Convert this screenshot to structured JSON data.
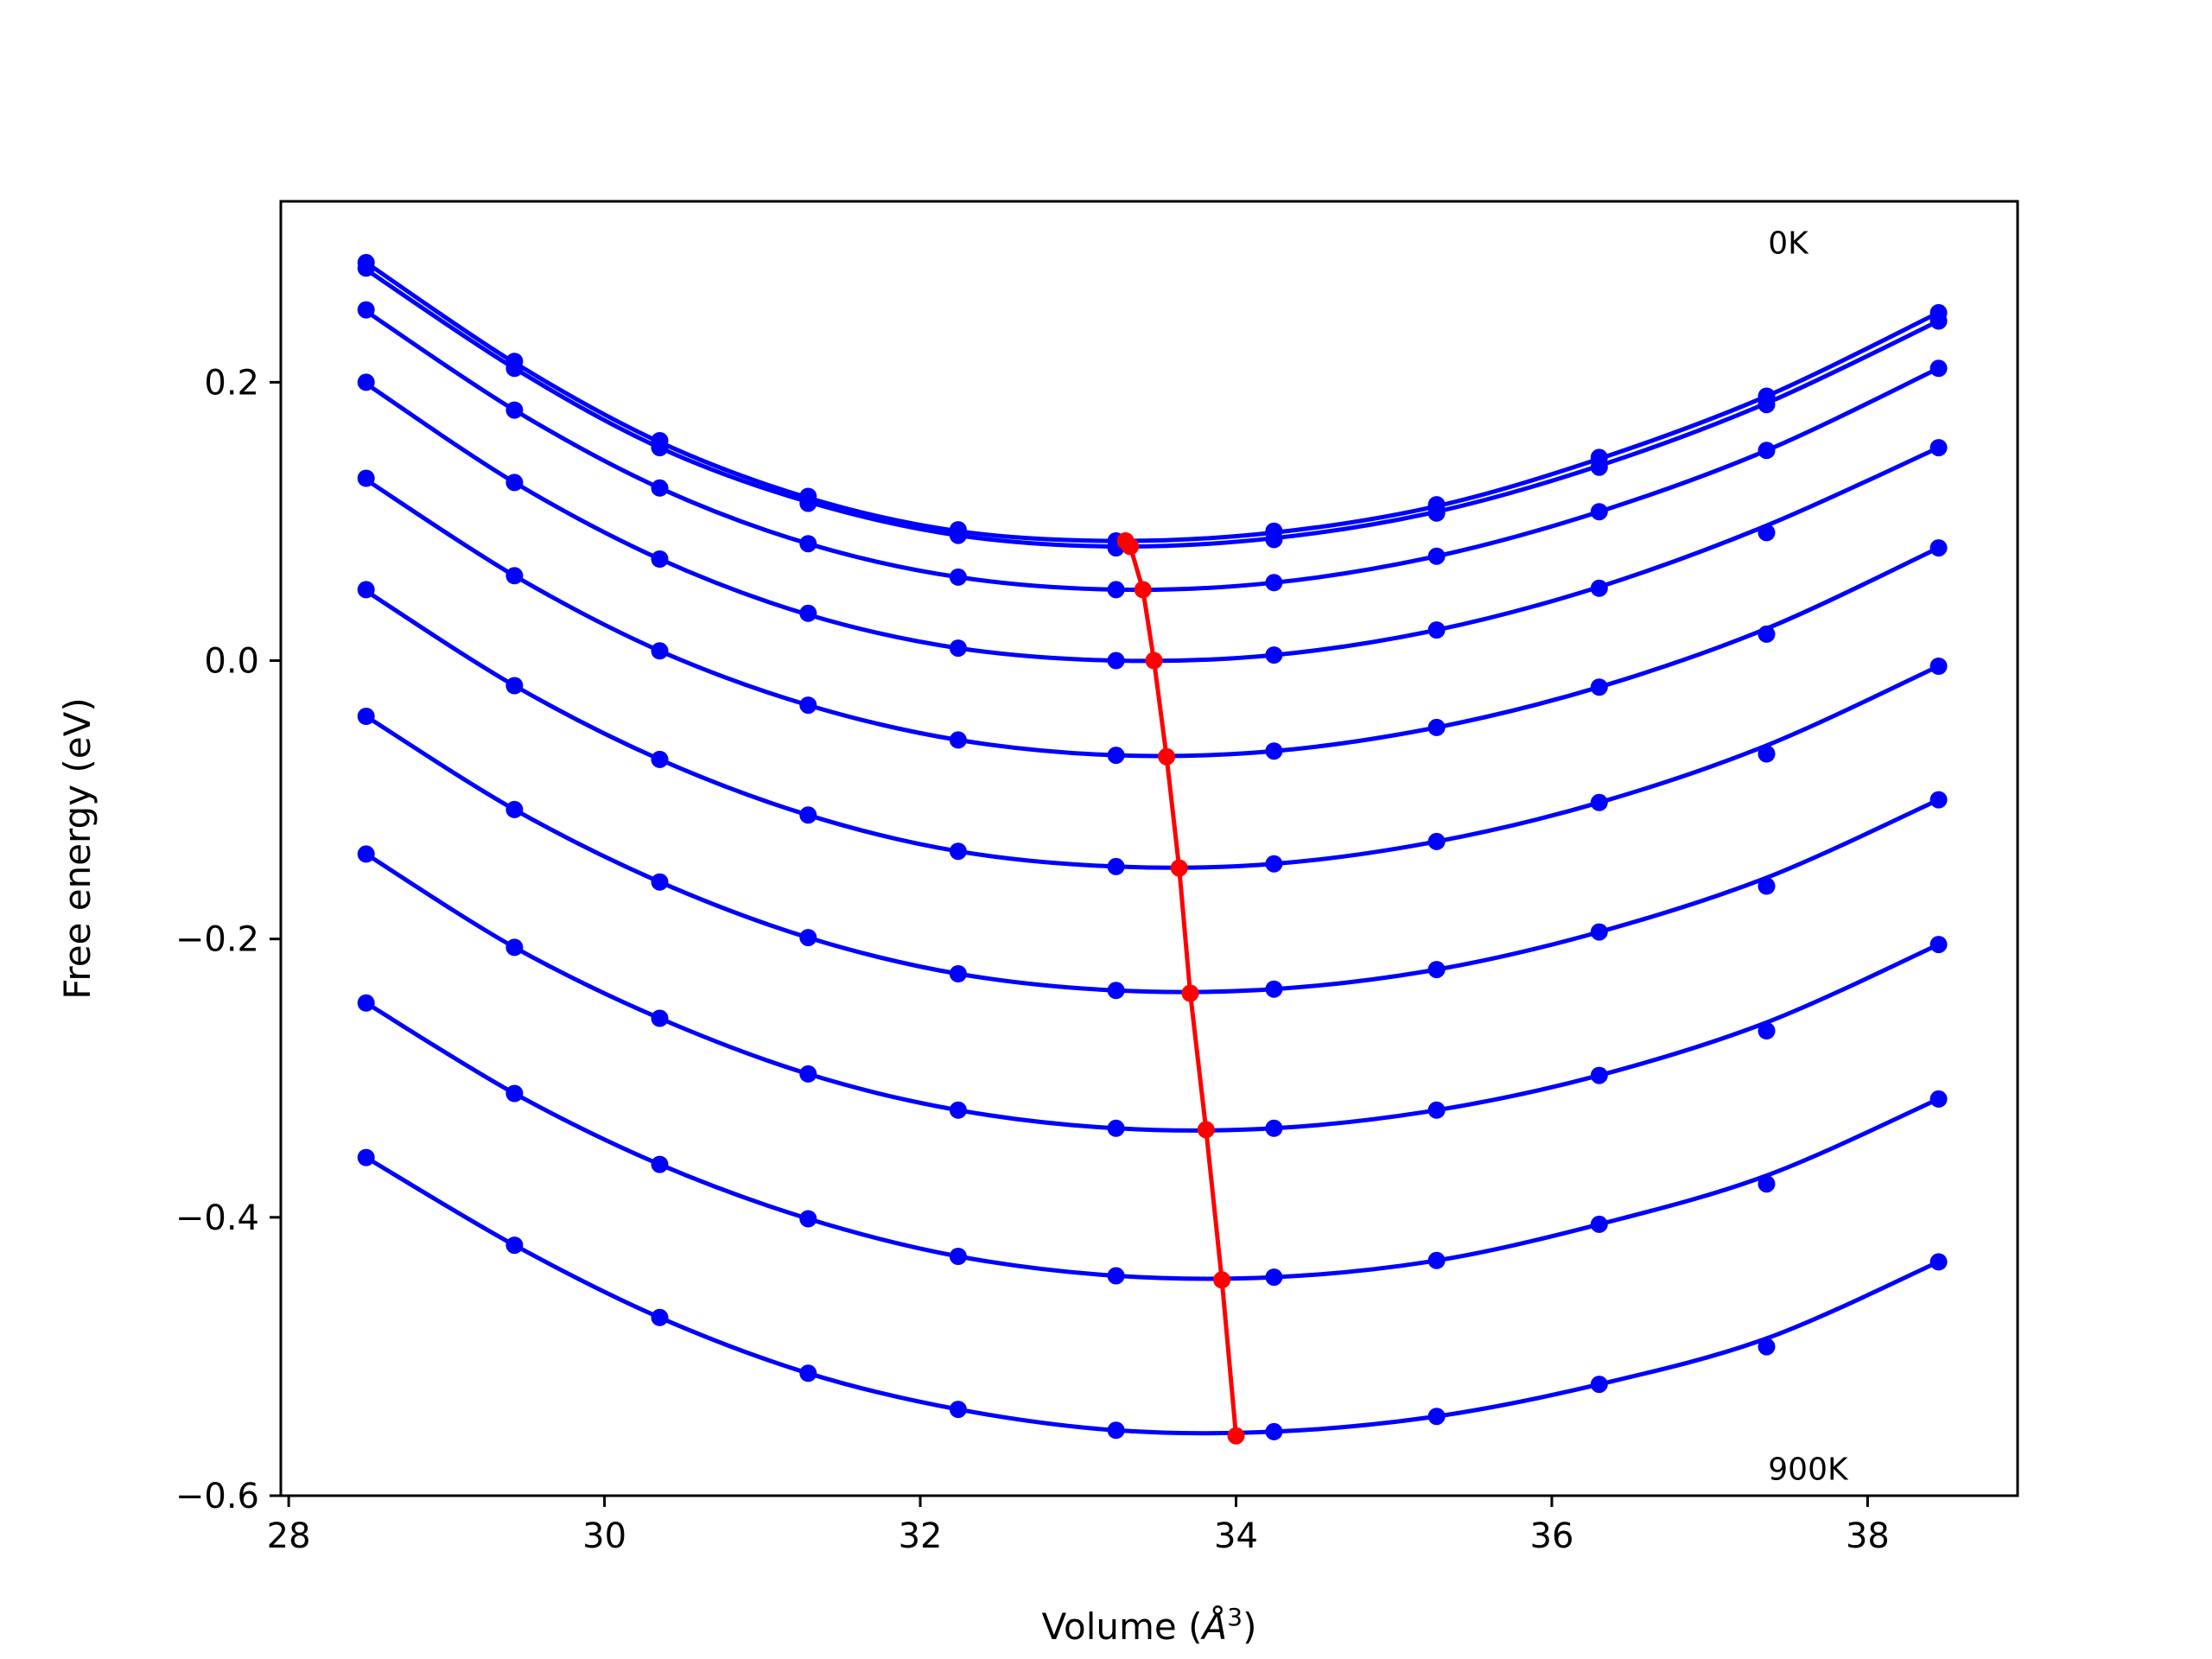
{
  "chart_data": {
    "type": "line",
    "title": "",
    "xlabel": "Volume",
    "xlabel_unit_base": "Å",
    "xlabel_unit_exp": "3",
    "ylabel": "Free energy (eV)",
    "xlim": [
      27.95,
      38.95
    ],
    "ylim": [
      -0.6,
      0.33
    ],
    "xticks": [
      28,
      30,
      32,
      34,
      36,
      38
    ],
    "xtick_labels": [
      "28",
      "30",
      "32",
      "34",
      "36",
      "38"
    ],
    "yticks": [
      -0.6,
      -0.4,
      -0.2,
      0.0,
      0.2
    ],
    "ytick_labels": [
      "−0.6",
      "−0.4",
      "−0.2",
      "0.0",
      "0.2"
    ],
    "grid": false,
    "legend": "none",
    "x": [
      28.49,
      29.43,
      30.35,
      31.29,
      32.24,
      33.24,
      34.24,
      35.27,
      36.3,
      37.36,
      38.45
    ],
    "series": [
      {
        "points": [
          0.286,
          0.215,
          0.158,
          0.118,
          0.094,
          0.086,
          0.093,
          0.112,
          0.146,
          0.19,
          0.25
        ],
        "fit": [
          0.286,
          0.214,
          0.157,
          0.117,
          0.093,
          0.086,
          0.092,
          0.111,
          0.145,
          0.19,
          0.25
        ],
        "min_v": 33.3,
        "min_f": 0.086
      },
      {
        "points": [
          0.282,
          0.21,
          0.153,
          0.113,
          0.09,
          0.081,
          0.087,
          0.106,
          0.139,
          0.184,
          0.244
        ],
        "fit": [
          0.281,
          0.21,
          0.153,
          0.114,
          0.09,
          0.082,
          0.088,
          0.107,
          0.14,
          0.185,
          0.244
        ],
        "min_v": 33.33,
        "min_f": 0.082
      },
      {
        "points": [
          0.252,
          0.18,
          0.124,
          0.084,
          0.06,
          0.051,
          0.056,
          0.075,
          0.107,
          0.151,
          0.21
        ],
        "fit": [
          0.251,
          0.18,
          0.124,
          0.084,
          0.06,
          0.051,
          0.056,
          0.075,
          0.107,
          0.151,
          0.21
        ],
        "min_v": 33.41,
        "min_f": 0.051
      },
      {
        "points": [
          0.2,
          0.128,
          0.073,
          0.034,
          0.009,
          0.0,
          0.004,
          0.022,
          0.052,
          0.092,
          0.153
        ],
        "fit": [
          0.199,
          0.128,
          0.073,
          0.033,
          0.009,
          0.0,
          0.004,
          0.022,
          0.053,
          0.097,
          0.153
        ],
        "min_v": 33.48,
        "min_f": 0.0
      },
      {
        "points": [
          0.131,
          0.061,
          0.007,
          -0.032,
          -0.057,
          -0.068,
          -0.065,
          -0.048,
          -0.019,
          0.019,
          0.081
        ],
        "fit": [
          0.13,
          0.061,
          0.007,
          -0.032,
          -0.057,
          -0.068,
          -0.065,
          -0.048,
          -0.019,
          0.023,
          0.081
        ],
        "min_v": 33.56,
        "min_f": -0.069
      },
      {
        "points": [
          0.051,
          -0.018,
          -0.071,
          -0.111,
          -0.137,
          -0.148,
          -0.146,
          -0.13,
          -0.102,
          -0.067,
          -0.004
        ],
        "fit": [
          0.05,
          -0.018,
          -0.071,
          -0.111,
          -0.137,
          -0.148,
          -0.146,
          -0.13,
          -0.102,
          -0.061,
          -0.004
        ],
        "min_v": 33.64,
        "min_f": -0.149
      },
      {
        "points": [
          -0.04,
          -0.107,
          -0.159,
          -0.199,
          -0.225,
          -0.237,
          -0.236,
          -0.222,
          -0.195,
          -0.162,
          -0.1
        ],
        "fit": [
          -0.04,
          -0.107,
          -0.159,
          -0.199,
          -0.225,
          -0.237,
          -0.236,
          -0.222,
          -0.195,
          -0.156,
          -0.1
        ],
        "min_v": 33.71,
        "min_f": -0.239
      },
      {
        "points": [
          -0.139,
          -0.206,
          -0.257,
          -0.297,
          -0.323,
          -0.336,
          -0.336,
          -0.323,
          -0.298,
          -0.266,
          -0.204
        ],
        "fit": [
          -0.139,
          -0.206,
          -0.257,
          -0.297,
          -0.323,
          -0.336,
          -0.336,
          -0.323,
          -0.298,
          -0.26,
          -0.204
        ],
        "min_v": 33.81,
        "min_f": -0.337
      },
      {
        "points": [
          -0.246,
          -0.311,
          -0.362,
          -0.401,
          -0.428,
          -0.442,
          -0.443,
          -0.431,
          -0.405,
          -0.376,
          -0.315
        ],
        "fit": [
          -0.246,
          -0.311,
          -0.362,
          -0.401,
          -0.428,
          -0.442,
          -0.443,
          -0.431,
          -0.405,
          -0.37,
          -0.315
        ],
        "min_v": 33.91,
        "min_f": -0.445
      },
      {
        "points": [
          -0.357,
          -0.42,
          -0.472,
          -0.512,
          -0.538,
          -0.553,
          -0.554,
          -0.543,
          -0.52,
          -0.493,
          -0.432
        ],
        "fit": [
          -0.357,
          -0.42,
          -0.472,
          -0.512,
          -0.538,
          -0.553,
          -0.554,
          -0.543,
          -0.52,
          -0.487,
          -0.432
        ],
        "min_v": 34.0,
        "min_f": -0.557
      }
    ],
    "annotations": [
      {
        "text": "0K",
        "v": 37.37,
        "f": 0.3
      },
      {
        "text": "900K",
        "v": 37.37,
        "f": -0.581
      }
    ],
    "colors": {
      "curves": "#0000ff",
      "minima": "#ff0000",
      "axes": "#000000"
    }
  }
}
